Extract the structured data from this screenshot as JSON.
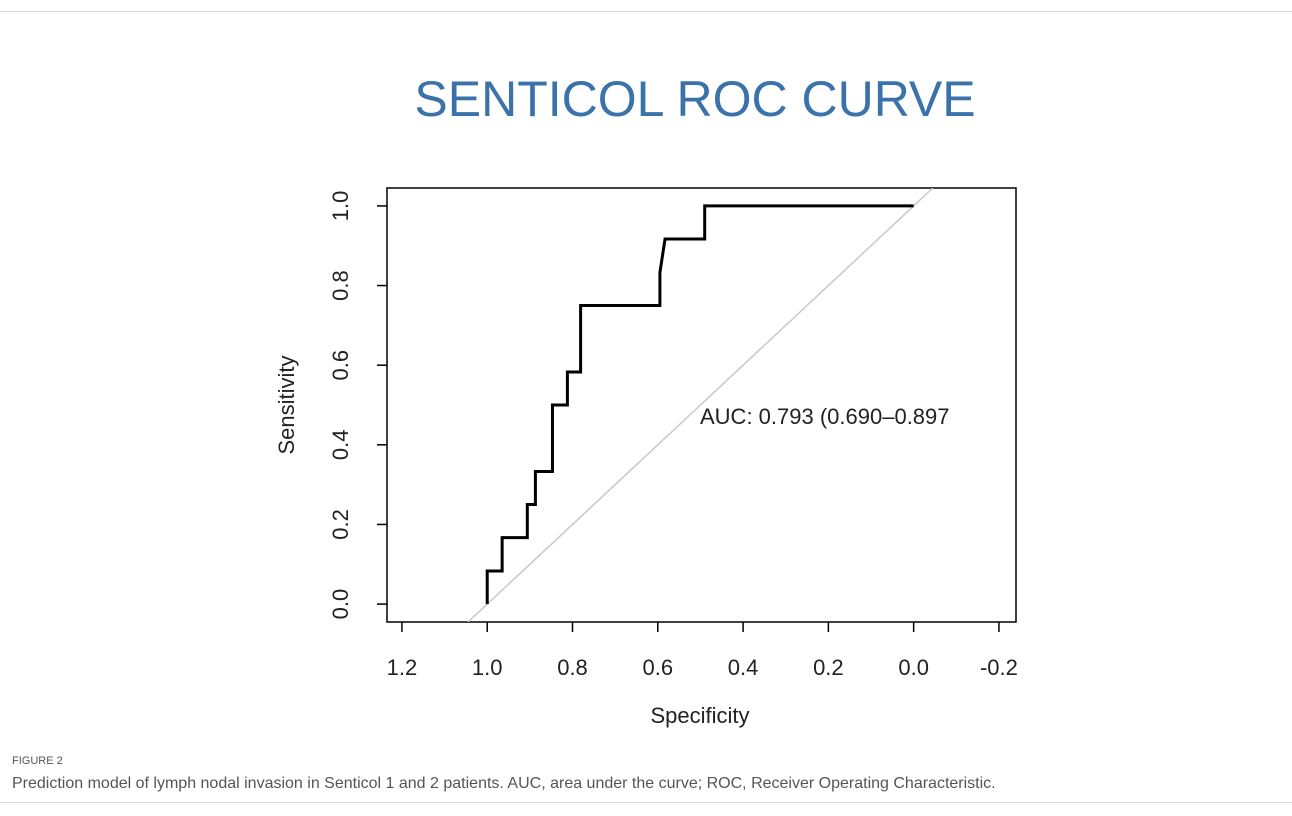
{
  "figure_label": "FIGURE 2",
  "caption": "Prediction model of lymph nodal invasion in Senticol 1 and 2 patients. AUC, area under the curve; ROC, Receiver Operating Characteristic.",
  "chart_data": {
    "type": "line",
    "title": "SENTICOL ROC CURVE",
    "x_label": "Specificity",
    "y_label": "Sensitivity",
    "annotation": "AUC: 0.793 (0.690–0.897",
    "x": [
      1.0,
      1.0,
      0.965,
      0.965,
      0.906,
      0.906,
      0.887,
      0.887,
      0.847,
      0.847,
      0.812,
      0.812,
      0.781,
      0.781,
      0.595,
      0.595,
      0.583,
      0.49,
      0.49,
      0.0
    ],
    "values": [
      0.0,
      0.083,
      0.083,
      0.167,
      0.167,
      0.25,
      0.25,
      0.333,
      0.333,
      0.5,
      0.5,
      0.583,
      0.583,
      0.75,
      0.75,
      0.833,
      0.917,
      0.917,
      1.0,
      1.0
    ],
    "color": "#000000",
    "reference_color": "#c8c8c8",
    "title_color": "#3b72aa",
    "xlim": [
      1.235,
      -0.24
    ],
    "ylim": [
      -0.045,
      1.045
    ],
    "xticks": [
      {
        "value": 1.2,
        "label": "1.2"
      },
      {
        "value": 1,
        "label": "1.0"
      },
      0.8,
      0.6,
      0.4,
      0.2,
      {
        "value": 0,
        "label": "0.0"
      },
      -0.2
    ],
    "yticks": [
      {
        "value": 0,
        "label": "0.0"
      },
      0.2,
      0.4,
      0.6,
      0.8,
      {
        "value": 1,
        "label": "1.0"
      }
    ]
  }
}
